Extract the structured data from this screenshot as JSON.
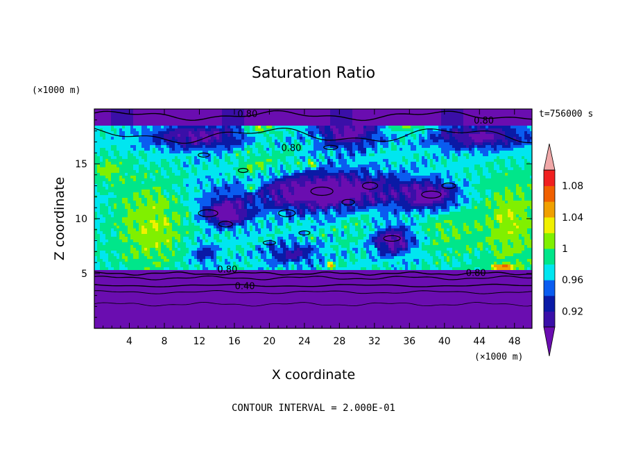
{
  "chart_data": {
    "type": "heatmap",
    "title": "Saturation Ratio",
    "xlabel": "X coordinate",
    "ylabel": "Z coordinate",
    "x_unit_label": "(×1000 m)",
    "y_unit_label": "(×1000 m)",
    "time_label": "t=756000 s",
    "footer": "CONTOUR INTERVAL = 2.000E-01",
    "xlim": [
      0,
      50
    ],
    "ylim": [
      0,
      20
    ],
    "x_ticks": [
      "4",
      "8",
      "12",
      "16",
      "20",
      "24",
      "28",
      "32",
      "36",
      "40",
      "44",
      "48"
    ],
    "y_ticks": [
      "5",
      "10",
      "15"
    ],
    "colorbar": {
      "levels": [
        0.9,
        0.92,
        0.94,
        0.96,
        0.98,
        1.0,
        1.02,
        1.04,
        1.06,
        1.08,
        1.1
      ],
      "tick_labels": [
        "0.92",
        "0.96",
        "1",
        "1.04",
        "1.08"
      ],
      "colors": [
        "#6a0db0",
        "#3a0fa8",
        "#0a1aa6",
        "#0a5cf0",
        "#00e6f0",
        "#00e68a",
        "#80f000",
        "#f0f000",
        "#f0a000",
        "#f06000",
        "#f02020",
        "#f0a8a8"
      ]
    },
    "contour_labels": [
      {
        "text": "0.80",
        "x": 17.5,
        "z": 19.6
      },
      {
        "text": "0.80",
        "x": 44.5,
        "z": 19.0
      },
      {
        "text": "0.80",
        "x": 22.5,
        "z": 16.5
      },
      {
        "text": "0.80",
        "x": 15.2,
        "z": 5.4
      },
      {
        "text": "0.80",
        "x": 43.6,
        "z": 5.1
      },
      {
        "text": "0.40",
        "x": 17.2,
        "z": 3.9
      }
    ]
  }
}
